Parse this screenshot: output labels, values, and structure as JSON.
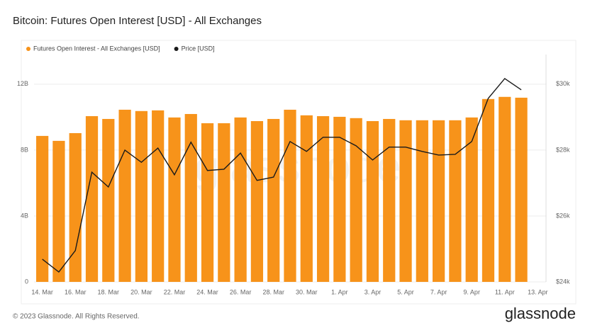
{
  "chart_data": {
    "type": "bar-line",
    "title": "Bitcoin: Futures Open Interest [USD] - All Exchanges",
    "watermark": "glassnode",
    "footer": "© 2023 Glassnode. All Rights Reserved.",
    "logo": "glassnode",
    "categories": [
      "14. Mar",
      null,
      "16. Mar",
      null,
      "18. Mar",
      null,
      "20. Mar",
      null,
      "22. Mar",
      null,
      "24. Mar",
      null,
      "26. Mar",
      null,
      "28. Mar",
      null,
      "30. Mar",
      null,
      "1. Apr",
      null,
      "3. Apr",
      null,
      "5. Apr",
      null,
      "7. Apr",
      null,
      "9. Apr",
      null,
      "11. Apr",
      null,
      "13. Apr"
    ],
    "series": [
      {
        "name": "Futures Open Interest - All Exchanges [USD]",
        "color": "#f7931a",
        "type": "bar",
        "values": [
          8.86,
          8.56,
          9.03,
          10.06,
          9.89,
          10.45,
          10.37,
          10.41,
          9.98,
          10.19,
          9.63,
          9.63,
          9.98,
          9.76,
          9.89,
          10.45,
          10.11,
          10.06,
          10.02,
          9.94,
          9.76,
          9.89,
          9.81,
          9.81,
          9.81,
          9.81,
          9.98,
          11.1,
          11.23,
          11.18,
          null
        ]
      },
      {
        "name": "Price [USD]",
        "color": "#1a1a1a",
        "type": "line",
        "axis": "y2",
        "values": [
          24.69,
          24.3,
          24.95,
          27.33,
          26.88,
          28.0,
          27.63,
          28.06,
          27.25,
          28.24,
          27.38,
          27.42,
          27.91,
          27.08,
          27.18,
          28.26,
          27.96,
          28.39,
          28.39,
          28.13,
          27.7,
          28.09,
          28.09,
          27.96,
          27.85,
          27.87,
          28.26,
          29.57,
          30.17,
          29.83,
          null
        ]
      }
    ],
    "ylim": [
      0,
      13.8
    ],
    "yticks": [
      0,
      {
        "value": 4,
        "label": "4B"
      },
      {
        "value": 8,
        "label": "8B"
      },
      {
        "value": 12,
        "label": "12B"
      }
    ],
    "y2lim": [
      24,
      30.9
    ],
    "y2ticks": [
      {
        "value": 24,
        "label": "$24k"
      },
      {
        "value": 26,
        "label": "$26k"
      },
      {
        "value": 28,
        "label": "$28k"
      },
      {
        "value": 30,
        "label": "$30k"
      }
    ],
    "grid": true
  }
}
